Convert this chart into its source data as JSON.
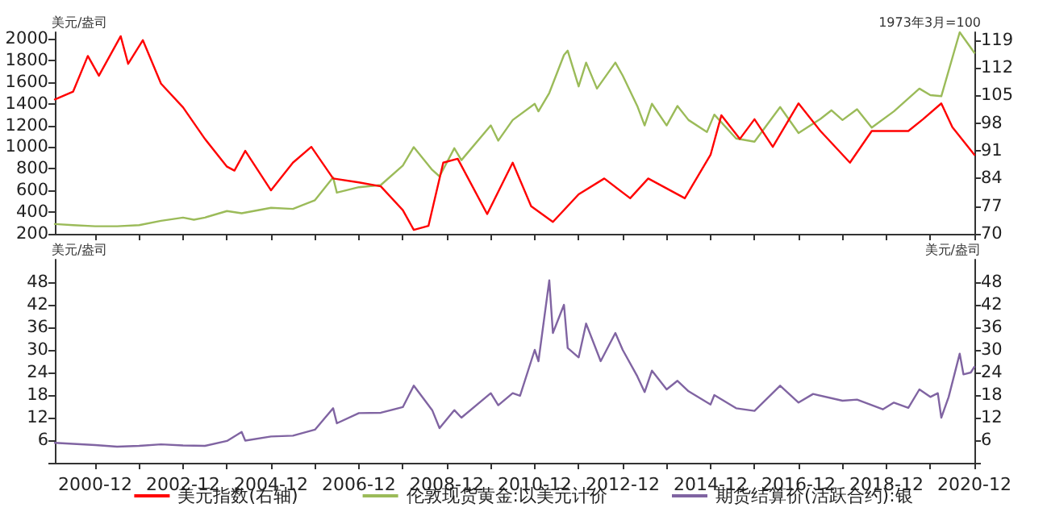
{
  "chart_data": [
    {
      "type": "line",
      "ylabel": "美元/盎司",
      "y2label": "1973年3月=100",
      "xlim": [
        "2000-01",
        "2020-12"
      ],
      "xticks": [
        {
          "value": "2000-12",
          "label": null
        },
        {
          "value": "2001-12",
          "label": null
        },
        {
          "value": "2002-12",
          "label": null
        },
        {
          "value": "2003-12",
          "label": null
        },
        {
          "value": "2004-12",
          "label": null
        },
        {
          "value": "2005-12",
          "label": null
        },
        {
          "value": "2006-12",
          "label": null
        },
        {
          "value": "2007-12",
          "label": null
        },
        {
          "value": "2008-12",
          "label": null
        },
        {
          "value": "2009-12",
          "label": null
        },
        {
          "value": "2010-12",
          "label": null
        },
        {
          "value": "2011-12",
          "label": null
        },
        {
          "value": "2012-12",
          "label": null
        },
        {
          "value": "2013-12",
          "label": null
        },
        {
          "value": "2014-12",
          "label": null
        },
        {
          "value": "2015-12",
          "label": null
        },
        {
          "value": "2016-12",
          "label": null
        },
        {
          "value": "2017-12",
          "label": null
        },
        {
          "value": "2018-12",
          "label": null
        },
        {
          "value": "2019-12",
          "label": null
        },
        {
          "value": "2020-12",
          "label": null
        }
      ],
      "ylim": [
        200,
        2060
      ],
      "yticks": [
        200,
        400,
        600,
        800,
        1000,
        1200,
        1400,
        1600,
        1800,
        2000
      ],
      "y2lim": [
        70,
        121
      ],
      "y2ticks": [
        70,
        77,
        84,
        91,
        98,
        105,
        112,
        119
      ],
      "tick_labels": "y",
      "grid": false,
      "marker": "none",
      "legend": "bottom",
      "series": [
        {
          "name": "美元指数(右轴)",
          "color": "#ff0000",
          "axis": "y2",
          "x": [
            "2000-01",
            "2000-06",
            "2000-10",
            "2001-01",
            "2001-07",
            "2001-09",
            "2002-01",
            "2002-06",
            "2002-12",
            "2003-06",
            "2003-12",
            "2004-02",
            "2004-05",
            "2004-12",
            "2005-06",
            "2005-11",
            "2006-05",
            "2006-12",
            "2007-06",
            "2007-12",
            "2008-03",
            "2008-07",
            "2008-11",
            "2009-03",
            "2009-11",
            "2010-06",
            "2010-11",
            "2011-05",
            "2011-12",
            "2012-07",
            "2013-02",
            "2013-07",
            "2014-05",
            "2014-12",
            "2015-03",
            "2015-08",
            "2015-12",
            "2016-05",
            "2016-12",
            "2017-06",
            "2018-02",
            "2018-08",
            "2019-06",
            "2019-10",
            "2020-03",
            "2020-06",
            "2020-12"
          ],
          "values": [
            104,
            106,
            115,
            110,
            120,
            113,
            119,
            108,
            102,
            94,
            87,
            86,
            91,
            81,
            88,
            92,
            84,
            83,
            82,
            76,
            71,
            72,
            88,
            89,
            75,
            88,
            77,
            73,
            80,
            84,
            79,
            84,
            79,
            90,
            100,
            94,
            99,
            92,
            103,
            96,
            88,
            96,
            96,
            99,
            103,
            97,
            90
          ]
        },
        {
          "name": "伦敦现货黄金:以美元计价",
          "color": "#9bbb59",
          "x": [
            "2000-01",
            "2000-06",
            "2000-12",
            "2001-06",
            "2001-12",
            "2002-06",
            "2002-12",
            "2003-03",
            "2003-06",
            "2003-12",
            "2004-04",
            "2004-12",
            "2005-06",
            "2005-12",
            "2006-05",
            "2006-06",
            "2006-12",
            "2007-06",
            "2007-12",
            "2008-03",
            "2008-08",
            "2008-10",
            "2009-02",
            "2009-04",
            "2009-12",
            "2010-02",
            "2010-06",
            "2010-12",
            "2011-01",
            "2011-04",
            "2011-08",
            "2011-09",
            "2011-12",
            "2012-02",
            "2012-05",
            "2012-10",
            "2012-12",
            "2013-04",
            "2013-06",
            "2013-08",
            "2013-12",
            "2014-03",
            "2014-06",
            "2014-11",
            "2015-01",
            "2015-07",
            "2015-12",
            "2016-07",
            "2016-12",
            "2017-06",
            "2017-09",
            "2017-12",
            "2018-04",
            "2018-08",
            "2019-02",
            "2019-09",
            "2019-12",
            "2020-03",
            "2020-08",
            "2020-12"
          ],
          "values": [
            290,
            280,
            270,
            270,
            280,
            320,
            350,
            330,
            350,
            410,
            390,
            440,
            430,
            510,
            720,
            580,
            630,
            650,
            830,
            1000,
            790,
            730,
            990,
            880,
            1200,
            1060,
            1250,
            1400,
            1330,
            1500,
            1850,
            1890,
            1560,
            1780,
            1540,
            1780,
            1660,
            1380,
            1200,
            1400,
            1200,
            1380,
            1250,
            1140,
            1300,
            1080,
            1050,
            1370,
            1130,
            1260,
            1340,
            1250,
            1350,
            1180,
            1330,
            1540,
            1480,
            1470,
            2060,
            1870
          ]
        }
      ]
    },
    {
      "type": "line",
      "ylabel": "美元/盎司",
      "y2label": "美元/盎司",
      "xlim": [
        "2000-01",
        "2020-12"
      ],
      "xticks": [
        "2000-12",
        {
          "value": "2001-12",
          "label": null
        },
        "2002-12",
        {
          "value": "2003-12",
          "label": null
        },
        "2004-12",
        {
          "value": "2005-12",
          "label": null
        },
        "2006-12",
        {
          "value": "2007-12",
          "label": null
        },
        "2008-12",
        {
          "value": "2009-12",
          "label": null
        },
        "2010-12",
        {
          "value": "2011-12",
          "label": null
        },
        "2012-12",
        {
          "value": "2013-12",
          "label": null
        },
        "2014-12",
        {
          "value": "2015-12",
          "label": null
        },
        "2016-12",
        {
          "value": "2017-12",
          "label": null
        },
        "2018-12",
        {
          "value": "2019-12",
          "label": null
        },
        "2020-12"
      ],
      "ylim": [
        0,
        54
      ],
      "yticks": [
        {
          "value": 0,
          "label": null
        },
        6,
        12,
        18,
        24,
        30,
        36,
        42,
        48
      ],
      "y2lim": [
        0,
        54
      ],
      "y2ticks": [
        {
          "value": 0,
          "label": null
        },
        6,
        12,
        18,
        24,
        30,
        36,
        42,
        48
      ],
      "grid": false,
      "marker": "none",
      "legend": "bottom",
      "series": [
        {
          "name": "期货结算价(活跃合约):银",
          "color": "#8064a2",
          "x": [
            "2000-01",
            "2000-12",
            "2001-06",
            "2001-12",
            "2002-06",
            "2002-12",
            "2003-06",
            "2003-12",
            "2004-04",
            "2004-05",
            "2004-12",
            "2005-06",
            "2005-12",
            "2006-05",
            "2006-06",
            "2006-12",
            "2007-06",
            "2007-12",
            "2008-03",
            "2008-08",
            "2008-10",
            "2009-02",
            "2009-04",
            "2009-12",
            "2010-02",
            "2010-06",
            "2010-08",
            "2010-12",
            "2011-01",
            "2011-04",
            "2011-05",
            "2011-08",
            "2011-09",
            "2011-12",
            "2012-02",
            "2012-06",
            "2012-10",
            "2012-12",
            "2013-04",
            "2013-06",
            "2013-08",
            "2013-12",
            "2014-03",
            "2014-06",
            "2014-12",
            "2015-01",
            "2015-07",
            "2015-12",
            "2016-07",
            "2016-12",
            "2017-04",
            "2017-12",
            "2018-04",
            "2018-11",
            "2019-02",
            "2019-06",
            "2019-09",
            "2019-12",
            "2020-02",
            "2020-03",
            "2020-05",
            "2020-08",
            "2020-09",
            "2020-11",
            "2020-12"
          ],
          "values": [
            5.3,
            4.7,
            4.3,
            4.5,
            4.9,
            4.6,
            4.5,
            5.8,
            8.2,
            5.9,
            7,
            7.2,
            8.8,
            14.5,
            10.5,
            13.2,
            13.3,
            14.8,
            20.5,
            14,
            9.2,
            14,
            12,
            18.5,
            15.3,
            18.5,
            17.8,
            30,
            27,
            48.5,
            34.5,
            42,
            30.5,
            28,
            37,
            27,
            34.5,
            30,
            23,
            18.8,
            24.5,
            19.5,
            21.8,
            19,
            15.5,
            18,
            14.5,
            13.8,
            20.5,
            16,
            18.3,
            16.5,
            16.8,
            14.2,
            16,
            14.6,
            19.5,
            17.5,
            18.5,
            12,
            17.5,
            29,
            23.5,
            24,
            25.5
          ]
        }
      ]
    }
  ]
}
